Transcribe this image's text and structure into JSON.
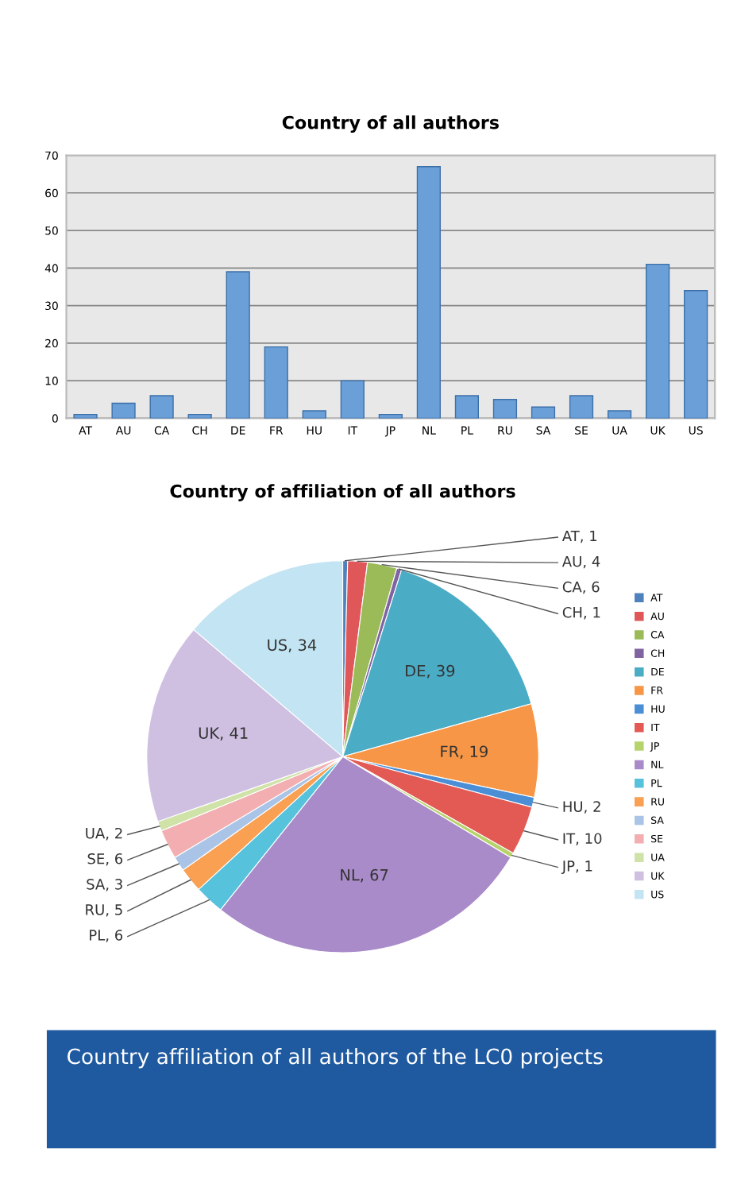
{
  "chart_data": [
    {
      "type": "bar",
      "title": "Country of all authors",
      "categories": [
        "AT",
        "AU",
        "CA",
        "CH",
        "DE",
        "FR",
        "HU",
        "IT",
        "JP",
        "NL",
        "PL",
        "RU",
        "SA",
        "SE",
        "UA",
        "UK",
        "US"
      ],
      "values": [
        1,
        4,
        6,
        1,
        39,
        19,
        2,
        10,
        1,
        67,
        6,
        5,
        3,
        6,
        2,
        41,
        34
      ],
      "color": "#6a9fd8",
      "ylim": [
        0,
        70
      ],
      "yticks": [
        0,
        10,
        20,
        30,
        40,
        50,
        60,
        70
      ],
      "grid": "y"
    },
    {
      "type": "pie",
      "title": "Country of affiliation of all authors",
      "categories": [
        "AT",
        "AU",
        "CA",
        "CH",
        "DE",
        "FR",
        "HU",
        "IT",
        "JP",
        "NL",
        "PL",
        "RU",
        "SA",
        "SE",
        "UA",
        "UK",
        "US"
      ],
      "values": [
        1,
        4,
        6,
        1,
        39,
        19,
        2,
        10,
        1,
        67,
        6,
        5,
        3,
        6,
        2,
        41,
        34
      ],
      "value_labels": [
        "AT, 1",
        "AU, 4",
        "CA, 6",
        "CH, 1",
        "DE, 39",
        "FR, 19",
        "HU, 2",
        "IT, 10",
        "JP, 1",
        "NL, 67",
        "PL, 6",
        "RU, 5",
        "SA, 3",
        "SE, 6",
        "UA, 2",
        "UK, 41",
        "US, 34"
      ],
      "colors": [
        "#4f81bd",
        "#e0575a",
        "#9bbb59",
        "#8064a2",
        "#4bacc6",
        "#f79646",
        "#4a8fd6",
        "#e35a55",
        "#b7d36b",
        "#a98bc9",
        "#56c2dc",
        "#f9a052",
        "#a9c4e6",
        "#f2aeb0",
        "#cfe3a8",
        "#cfc0e2",
        "#c3e4f2"
      ],
      "legend": "right",
      "annotations": [
        "Country affiliation of all authors of the LC0 projects"
      ]
    }
  ]
}
